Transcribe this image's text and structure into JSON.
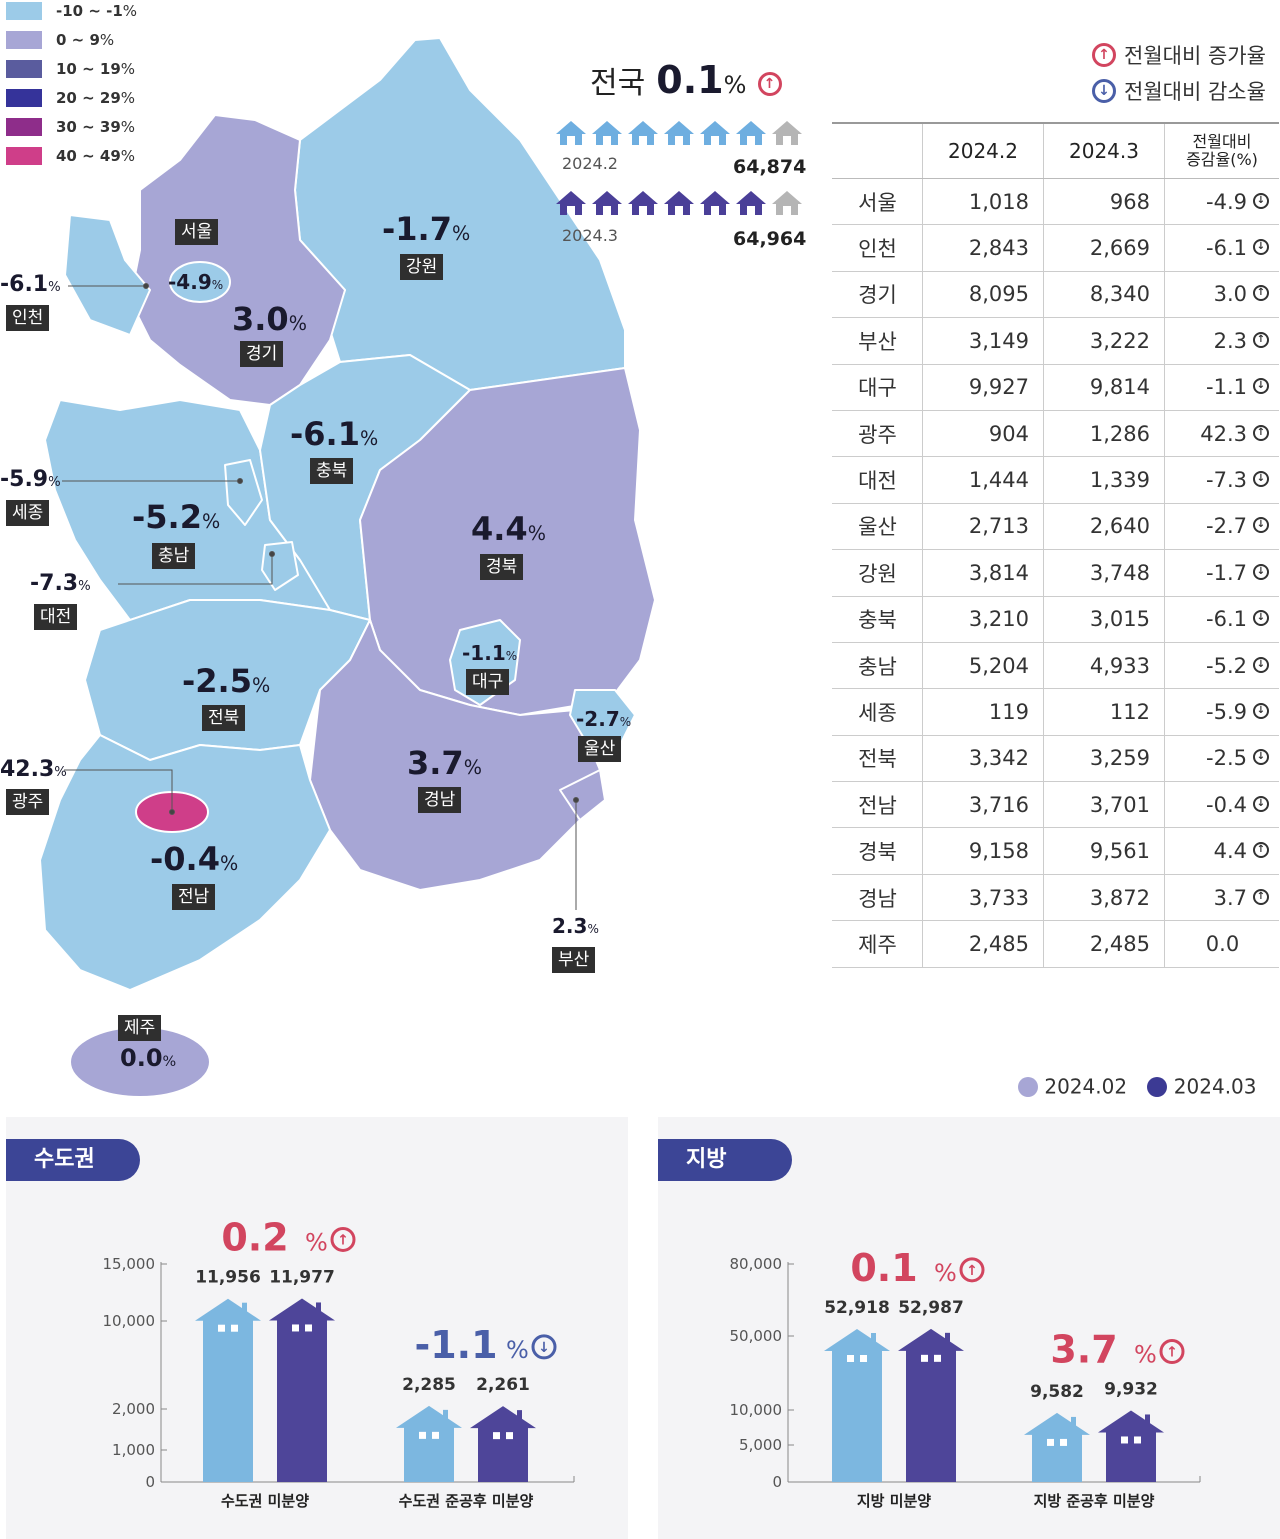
{
  "colors": {
    "legend": [
      "#9ccbe8",
      "#a7a6d5",
      "#5a5c9e",
      "#35339a",
      "#8e2d8a",
      "#cf3e89"
    ],
    "up": "#d2455f",
    "down": "#4a5fa8",
    "house_2024_2": "#6eaee0",
    "house_2024_3": "#4a3f98",
    "house_gray": "#b5b5b5",
    "feb_house": "#7cb7e0",
    "mar_house": "#4e4599",
    "pill": "#3c4596"
  },
  "legend": [
    {
      "label": "-10 ~ -1",
      "unit": "%"
    },
    {
      "label": "0 ~ 9",
      "unit": "%"
    },
    {
      "label": "10 ~ 19",
      "unit": "%"
    },
    {
      "label": "20 ~ 29",
      "unit": "%"
    },
    {
      "label": "30 ~ 39",
      "unit": "%"
    },
    {
      "label": "40 ~ 49",
      "unit": "%"
    }
  ],
  "arrow_legend": {
    "up": "전월대비 증가율",
    "down": "전월대비 감소율"
  },
  "national": {
    "label": "전국",
    "value": "0.1",
    "unit": "%",
    "rows": [
      {
        "period": "2024.2",
        "total": "64,874"
      },
      {
        "period": "2024.3",
        "total": "64,964"
      }
    ]
  },
  "map_labels": [
    {
      "name": "서울",
      "pct": "-4.9"
    },
    {
      "name": "인천",
      "pct": "-6.1"
    },
    {
      "name": "경기",
      "pct": "3.0"
    },
    {
      "name": "강원",
      "pct": "-1.7"
    },
    {
      "name": "충북",
      "pct": "-6.1"
    },
    {
      "name": "세종",
      "pct": "-5.9"
    },
    {
      "name": "충남",
      "pct": "-5.2"
    },
    {
      "name": "대전",
      "pct": "-7.3"
    },
    {
      "name": "경북",
      "pct": "4.4"
    },
    {
      "name": "대구",
      "pct": "-1.1"
    },
    {
      "name": "전북",
      "pct": "-2.5"
    },
    {
      "name": "울산",
      "pct": "-2.7"
    },
    {
      "name": "광주",
      "pct": "42.3"
    },
    {
      "name": "경남",
      "pct": "3.7"
    },
    {
      "name": "전남",
      "pct": "-0.4"
    },
    {
      "name": "부산",
      "pct": "2.3"
    },
    {
      "name": "제주",
      "pct": "0.0"
    }
  ],
  "pct_unit": "%",
  "table": {
    "headers": [
      "",
      "2024.2",
      "2024.3",
      "전월대비\n증감율(%)"
    ],
    "header_line1": "전월대비",
    "header_line2": "증감율(%)",
    "rows": [
      {
        "region": "서울",
        "feb": "1,018",
        "mar": "968",
        "chg": "-4.9",
        "dir": "down"
      },
      {
        "region": "인천",
        "feb": "2,843",
        "mar": "2,669",
        "chg": "-6.1",
        "dir": "down"
      },
      {
        "region": "경기",
        "feb": "8,095",
        "mar": "8,340",
        "chg": "3.0",
        "dir": "up"
      },
      {
        "region": "부산",
        "feb": "3,149",
        "mar": "3,222",
        "chg": "2.3",
        "dir": "up"
      },
      {
        "region": "대구",
        "feb": "9,927",
        "mar": "9,814",
        "chg": "-1.1",
        "dir": "down"
      },
      {
        "region": "광주",
        "feb": "904",
        "mar": "1,286",
        "chg": "42.3",
        "dir": "up"
      },
      {
        "region": "대전",
        "feb": "1,444",
        "mar": "1,339",
        "chg": "-7.3",
        "dir": "down"
      },
      {
        "region": "울산",
        "feb": "2,713",
        "mar": "2,640",
        "chg": "-2.7",
        "dir": "down"
      },
      {
        "region": "강원",
        "feb": "3,814",
        "mar": "3,748",
        "chg": "-1.7",
        "dir": "down"
      },
      {
        "region": "충북",
        "feb": "3,210",
        "mar": "3,015",
        "chg": "-6.1",
        "dir": "down"
      },
      {
        "region": "충남",
        "feb": "5,204",
        "mar": "4,933",
        "chg": "-5.2",
        "dir": "down"
      },
      {
        "region": "세종",
        "feb": "119",
        "mar": "112",
        "chg": "-5.9",
        "dir": "down"
      },
      {
        "region": "전북",
        "feb": "3,342",
        "mar": "3,259",
        "chg": "-2.5",
        "dir": "down"
      },
      {
        "region": "전남",
        "feb": "3,716",
        "mar": "3,701",
        "chg": "-0.4",
        "dir": "down"
      },
      {
        "region": "경북",
        "feb": "9,158",
        "mar": "9,561",
        "chg": "4.4",
        "dir": "up"
      },
      {
        "region": "경남",
        "feb": "3,733",
        "mar": "3,872",
        "chg": "3.7",
        "dir": "up"
      },
      {
        "region": "제주",
        "feb": "2,485",
        "mar": "2,485",
        "chg": "0.0",
        "dir": "none"
      }
    ]
  },
  "series_legend": [
    "2024.02",
    "2024.03"
  ],
  "chart_data": [
    {
      "type": "bar",
      "title": "수도권",
      "categories": [
        "수도권 미분양",
        "수도권 준공후 미분양"
      ],
      "series": [
        {
          "name": "2024.02",
          "values": [
            11956,
            2285
          ]
        },
        {
          "name": "2024.03",
          "values": [
            11977,
            2261
          ]
        }
      ],
      "value_labels": [
        [
          "11,956",
          "2,285"
        ],
        [
          "11,977",
          "2,261"
        ]
      ],
      "changes": [
        {
          "value": "0.2",
          "dir": "up"
        },
        {
          "value": "-1.1",
          "dir": "down"
        }
      ],
      "yticks": [
        0,
        1000,
        2000,
        10000,
        15000
      ],
      "ytick_labels": [
        "0",
        "1,000",
        "2,000",
        "10,000",
        "15,000"
      ],
      "scale": "broken"
    },
    {
      "type": "bar",
      "title": "지방",
      "categories": [
        "지방 미분양",
        "지방 준공후 미분양"
      ],
      "series": [
        {
          "name": "2024.02",
          "values": [
            52918,
            9582
          ]
        },
        {
          "name": "2024.03",
          "values": [
            52987,
            9932
          ]
        }
      ],
      "value_labels": [
        [
          "52,918",
          "9,582"
        ],
        [
          "52,987",
          "9,932"
        ]
      ],
      "changes": [
        {
          "value": "0.1",
          "dir": "up"
        },
        {
          "value": "3.7",
          "dir": "up"
        }
      ],
      "yticks": [
        0,
        5000,
        10000,
        50000,
        80000
      ],
      "ytick_labels": [
        "0",
        "5,000",
        "10,000",
        "50,000",
        "80,000"
      ],
      "scale": "broken"
    }
  ]
}
